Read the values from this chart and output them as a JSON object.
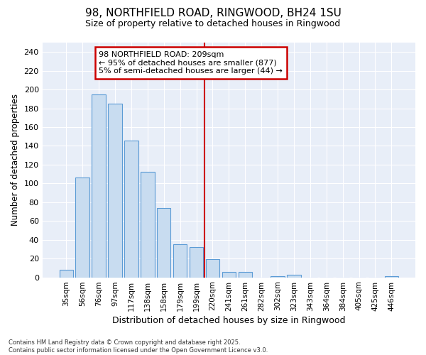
{
  "title1": "98, NORTHFIELD ROAD, RINGWOOD, BH24 1SU",
  "title2": "Size of property relative to detached houses in Ringwood",
  "xlabel": "Distribution of detached houses by size in Ringwood",
  "ylabel": "Number of detached properties",
  "categories": [
    "35sqm",
    "56sqm",
    "76sqm",
    "97sqm",
    "117sqm",
    "138sqm",
    "158sqm",
    "179sqm",
    "199sqm",
    "220sqm",
    "241sqm",
    "261sqm",
    "282sqm",
    "302sqm",
    "323sqm",
    "343sqm",
    "364sqm",
    "384sqm",
    "405sqm",
    "425sqm",
    "446sqm"
  ],
  "values": [
    8,
    106,
    195,
    185,
    146,
    112,
    74,
    35,
    32,
    19,
    6,
    6,
    0,
    1,
    3,
    0,
    0,
    0,
    0,
    0,
    1
  ],
  "bar_color": "#c8dcf0",
  "bar_edge_color": "#5b9bd5",
  "vline_index": 8.5,
  "vline_color": "#cc0000",
  "annotation_line1": "98 NORTHFIELD ROAD: 209sqm",
  "annotation_line2": "← 95% of detached houses are smaller (877)",
  "annotation_line3": "5% of semi-detached houses are larger (44) →",
  "annotation_box_face": "#ffffff",
  "annotation_box_edge": "#cc0000",
  "ylim": [
    0,
    250
  ],
  "yticks": [
    0,
    20,
    40,
    60,
    80,
    100,
    120,
    140,
    160,
    180,
    200,
    220,
    240
  ],
  "footer_line1": "Contains HM Land Registry data © Crown copyright and database right 2025.",
  "footer_line2": "Contains public sector information licensed under the Open Government Licence v3.0.",
  "fig_bg_color": "#ffffff",
  "plot_bg_color": "#e8eef8",
  "grid_color": "#ffffff"
}
